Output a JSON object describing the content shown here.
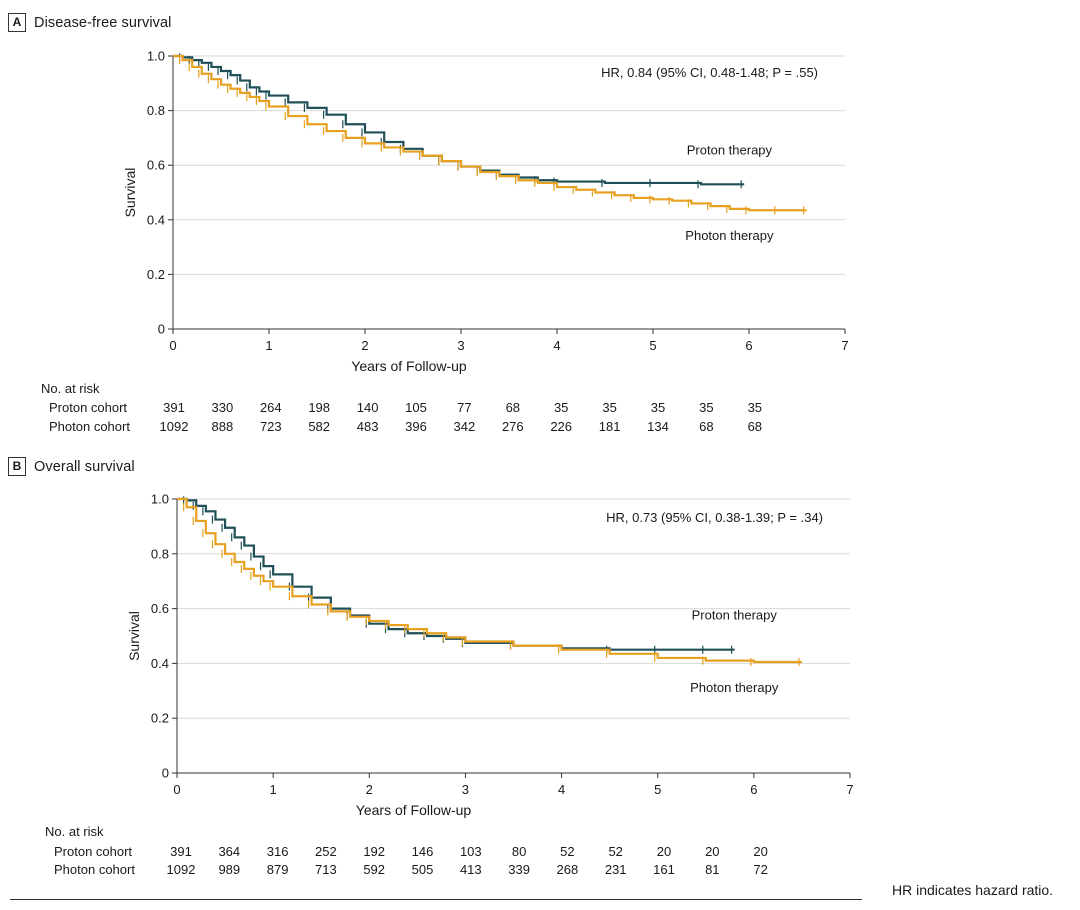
{
  "chart_data": [
    {
      "type": "line",
      "panel_letter": "A",
      "title": "Disease-free survival",
      "xlabel": "Years of Follow-up",
      "ylabel": "Survival",
      "xlim": [
        0,
        7
      ],
      "ylim": [
        0,
        1.0
      ],
      "xticks": [
        "0",
        "1",
        "2",
        "3",
        "4",
        "5",
        "6",
        "7"
      ],
      "yticks": [
        "0",
        "0.2",
        "0.4",
        "0.6",
        "0.8",
        "1.0"
      ],
      "grid": "horizontal",
      "annotation": "HR, 0.84 (95% CI, 0.48-1.48; P = .55)",
      "series": [
        {
          "name": "Proton therapy",
          "color": "#1f4f57",
          "x": [
            0,
            0.1,
            0.2,
            0.3,
            0.4,
            0.5,
            0.6,
            0.7,
            0.8,
            0.9,
            1.0,
            1.2,
            1.4,
            1.6,
            1.8,
            2.0,
            2.2,
            2.4,
            2.6,
            2.8,
            3.0,
            3.2,
            3.4,
            3.6,
            3.8,
            4.0,
            4.5,
            5.0,
            5.5,
            5.95
          ],
          "y": [
            1.0,
            0.995,
            0.985,
            0.975,
            0.96,
            0.945,
            0.93,
            0.91,
            0.885,
            0.87,
            0.855,
            0.83,
            0.81,
            0.785,
            0.75,
            0.72,
            0.685,
            0.66,
            0.635,
            0.615,
            0.595,
            0.58,
            0.565,
            0.555,
            0.545,
            0.54,
            0.535,
            0.535,
            0.53,
            0.53
          ]
        },
        {
          "name": "Photon therapy",
          "color": "#e8a020",
          "x": [
            0,
            0.1,
            0.2,
            0.3,
            0.4,
            0.5,
            0.6,
            0.7,
            0.8,
            0.9,
            1.0,
            1.2,
            1.4,
            1.6,
            1.8,
            2.0,
            2.2,
            2.4,
            2.6,
            2.8,
            3.0,
            3.2,
            3.4,
            3.6,
            3.8,
            4.0,
            4.2,
            4.4,
            4.6,
            4.8,
            5.0,
            5.2,
            5.4,
            5.6,
            5.8,
            6.0,
            6.3,
            6.6
          ],
          "y": [
            1.0,
            0.985,
            0.96,
            0.935,
            0.915,
            0.895,
            0.88,
            0.865,
            0.85,
            0.835,
            0.815,
            0.78,
            0.75,
            0.725,
            0.7,
            0.68,
            0.665,
            0.65,
            0.635,
            0.615,
            0.595,
            0.575,
            0.56,
            0.545,
            0.535,
            0.52,
            0.51,
            0.5,
            0.49,
            0.48,
            0.475,
            0.47,
            0.46,
            0.45,
            0.44,
            0.435,
            0.435,
            0.435
          ]
        }
      ],
      "risk_table": {
        "heading": "No. at risk",
        "rows": [
          {
            "label": "Proton cohort",
            "values": [
              "391",
              "330",
              "264",
              "198",
              "140",
              "105",
              "77",
              "68",
              "35",
              "35",
              "35",
              "35",
              "35"
            ]
          },
          {
            "label": "Photon cohort",
            "values": [
              "1092",
              "888",
              "723",
              "582",
              "483",
              "396",
              "342",
              "276",
              "226",
              "181",
              "134",
              "68",
              "68"
            ]
          }
        ]
      }
    },
    {
      "type": "line",
      "panel_letter": "B",
      "title": "Overall survival",
      "xlabel": "Years of Follow-up",
      "ylabel": "Survival",
      "xlim": [
        0,
        7
      ],
      "ylim": [
        0,
        1.0
      ],
      "xticks": [
        "0",
        "1",
        "2",
        "3",
        "4",
        "5",
        "6",
        "7"
      ],
      "yticks": [
        "0",
        "0.2",
        "0.4",
        "0.6",
        "0.8",
        "1.0"
      ],
      "grid": "horizontal",
      "annotation": "HR, 0.73 (95% CI, 0.38-1.39; P = .34)",
      "series": [
        {
          "name": "Proton therapy",
          "color": "#1f4f57",
          "x": [
            0,
            0.1,
            0.2,
            0.3,
            0.4,
            0.5,
            0.6,
            0.7,
            0.8,
            0.9,
            1.0,
            1.2,
            1.4,
            1.6,
            1.8,
            2.0,
            2.2,
            2.4,
            2.6,
            2.8,
            3.0,
            3.5,
            4.0,
            4.5,
            5.0,
            5.5,
            5.8
          ],
          "y": [
            1.0,
            0.995,
            0.975,
            0.955,
            0.925,
            0.895,
            0.86,
            0.83,
            0.79,
            0.755,
            0.725,
            0.68,
            0.64,
            0.6,
            0.575,
            0.545,
            0.525,
            0.51,
            0.5,
            0.49,
            0.475,
            0.465,
            0.455,
            0.45,
            0.45,
            0.45,
            0.45
          ]
        },
        {
          "name": "Photon therapy",
          "color": "#e8a020",
          "x": [
            0,
            0.1,
            0.2,
            0.3,
            0.4,
            0.5,
            0.6,
            0.7,
            0.8,
            0.9,
            1.0,
            1.2,
            1.4,
            1.6,
            1.8,
            2.0,
            2.2,
            2.4,
            2.6,
            2.8,
            3.0,
            3.5,
            4.0,
            4.5,
            5.0,
            5.5,
            6.0,
            6.5
          ],
          "y": [
            1.0,
            0.97,
            0.92,
            0.875,
            0.835,
            0.8,
            0.77,
            0.745,
            0.72,
            0.7,
            0.68,
            0.645,
            0.615,
            0.59,
            0.57,
            0.555,
            0.54,
            0.525,
            0.51,
            0.495,
            0.48,
            0.465,
            0.45,
            0.435,
            0.42,
            0.41,
            0.405,
            0.405
          ]
        }
      ],
      "risk_table": {
        "heading": "No. at risk",
        "rows": [
          {
            "label": "Proton cohort",
            "values": [
              "391",
              "364",
              "316",
              "252",
              "192",
              "146",
              "103",
              "80",
              "52",
              "52",
              "20",
              "20",
              "20"
            ]
          },
          {
            "label": "Photon cohort",
            "values": [
              "1092",
              "989",
              "879",
              "713",
              "592",
              "505",
              "413",
              "339",
              "268",
              "231",
              "161",
              "81",
              "72"
            ]
          }
        ]
      }
    }
  ],
  "footnote": "HR indicates hazard ratio."
}
